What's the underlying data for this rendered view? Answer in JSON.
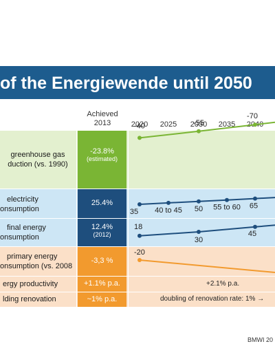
{
  "title": "of the Energiewende until 2050",
  "header": {
    "achieved_line1": "Achieved",
    "achieved_line2": "2013"
  },
  "years": [
    "2020",
    "2025",
    "2030",
    "2035",
    "2040"
  ],
  "source": "BMWI 20",
  "rows": [
    {
      "label_line1": "greenhouse gas",
      "label_line2": "duction (vs. 1990)",
      "achieved": "-23.8%",
      "achieved_sub": "(estimated)",
      "achieved_color": "#7ab534",
      "bg": "#e3f0cf"
    },
    {
      "label_line1": "electricity",
      "label_line2": "onsumption",
      "achieved": "25.4%",
      "achieved_sub": "",
      "achieved_color": "#1e4e7d",
      "bg": "#cde6f5"
    },
    {
      "label_line1": "final energy",
      "label_line2": "onsumption",
      "achieved": "12.4%",
      "achieved_sub": "(2012)",
      "achieved_color": "#1e4e7d",
      "bg": "#cde6f5"
    },
    {
      "label_line1": "primary energy",
      "label_line2": "onsumption (vs. 2008",
      "achieved": "-3,3 %",
      "achieved_sub": "",
      "achieved_color": "#f29a2e",
      "bg": "#fbe0c8"
    },
    {
      "label_line1": "ergy productivity",
      "label_line2": "",
      "achieved": "+1.1% p.a.",
      "achieved_sub": "",
      "achieved_color": "#f29a2e",
      "bg": "#fbe0c8"
    },
    {
      "label_line1": "lding renovation",
      "label_line2": "",
      "achieved": "~1% p.a.",
      "achieved_sub": "",
      "achieved_color": "#f29a2e",
      "bg": "#fbe0c8"
    }
  ],
  "row_texts": {
    "productivity": "+2.1% p.a.",
    "renovation": "doubling of renovation rate: 1% →"
  },
  "chart_data": {
    "type": "line",
    "categories": [
      "2020",
      "2025",
      "2030",
      "2035",
      "2040"
    ],
    "series": [
      {
        "key": "ghg",
        "color": "#7ab534",
        "points": [
          {
            "x": "2020",
            "y": -40,
            "label": "-40"
          },
          {
            "x": "2030",
            "y": -55,
            "label": "-55"
          },
          {
            "x": "2040",
            "y": -70,
            "label": "-70"
          }
        ]
      },
      {
        "key": "elec",
        "color": "#1e4e7d",
        "points": [
          {
            "x": "2020",
            "y": 35,
            "label": "35"
          },
          {
            "x": "2025",
            "y": 42.5,
            "label": "40 to 45"
          },
          {
            "x": "2030",
            "y": 50,
            "label": "50"
          },
          {
            "x": "2035",
            "y": 57.5,
            "label": "55 to 60"
          },
          {
            "x": "2040",
            "y": 65,
            "label": "65"
          }
        ]
      },
      {
        "key": "final",
        "color": "#1e4e7d",
        "points": [
          {
            "x": "2020",
            "y": 18,
            "label": "18"
          },
          {
            "x": "2030",
            "y": 30,
            "label": "30"
          },
          {
            "x": "2040",
            "y": 45,
            "label": "45"
          }
        ]
      },
      {
        "key": "primary",
        "color": "#f29a2e",
        "points": [
          {
            "x": "2020",
            "y": -20,
            "label": "-20"
          }
        ]
      }
    ]
  }
}
